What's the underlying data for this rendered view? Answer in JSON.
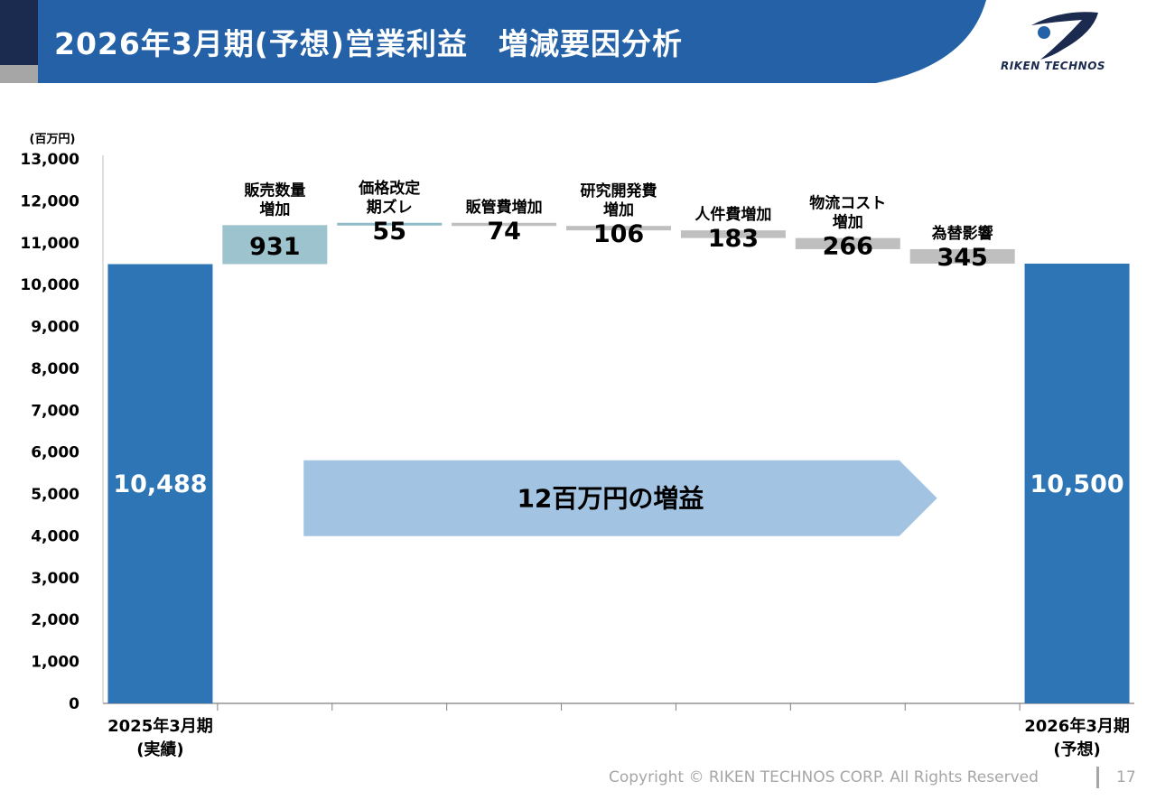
{
  "header": {
    "title": "2026年3月期(予想)営業利益　増減要因分析",
    "bar_color": "#2461a6",
    "accent_color": "#1b2a4f",
    "logo_icon": "riken-technos-logo-icon",
    "logo_text": "RIKEN TECHNOS"
  },
  "chart_data": {
    "type": "bar",
    "subtype": "waterfall",
    "unit_label": "(百万円)",
    "ylim": [
      0,
      13000
    ],
    "yticks": [
      "0",
      "1,000",
      "2,000",
      "3,000",
      "4,000",
      "5,000",
      "6,000",
      "7,000",
      "8,000",
      "9,000",
      "10,000",
      "11,000",
      "12,000",
      "13,000"
    ],
    "grid": false,
    "colors": {
      "total": "#2e75b6",
      "increase": "#9dc3cf",
      "increase_line": "#8fbcc8",
      "decrease": "#bfbfbf",
      "arrow": "#a2c4e2"
    },
    "categories": [
      {
        "label": "2025年3月期\n(実績)",
        "kind": "total",
        "value": 10488,
        "value_label": "10,488",
        "cat_text": ""
      },
      {
        "label": "販売数量\n増加",
        "kind": "increase",
        "value": 931,
        "value_label": "931",
        "cat_text": ""
      },
      {
        "label": "価格改定\n期ズレ",
        "kind": "increase",
        "value": 55,
        "value_label": "55",
        "cat_text": ""
      },
      {
        "label": "販管費増加",
        "kind": "decrease",
        "value": -74,
        "value_label": "74",
        "cat_text": ""
      },
      {
        "label": "研究開発費\n増加",
        "kind": "decrease",
        "value": -106,
        "value_label": "106",
        "cat_text": ""
      },
      {
        "label": "人件費増加",
        "kind": "decrease",
        "value": -183,
        "value_label": "183",
        "cat_text": ""
      },
      {
        "label": "物流コスト\n増加",
        "kind": "decrease",
        "value": -266,
        "value_label": "266",
        "cat_text": ""
      },
      {
        "label": "為替影響",
        "kind": "decrease",
        "value": -345,
        "value_label": "345",
        "cat_text": ""
      },
      {
        "label": "2026年3月期\n(予想)",
        "kind": "total",
        "value": 10500,
        "value_label": "10,500",
        "cat_text": ""
      }
    ],
    "annotation": {
      "text": "12百万円の増益",
      "from_value": 10488,
      "to_value": 10500,
      "change": 12
    }
  },
  "footer": {
    "copyright": "Copyright © RIKEN TECHNOS CORP. All Rights Reserved",
    "page_number": "17"
  }
}
